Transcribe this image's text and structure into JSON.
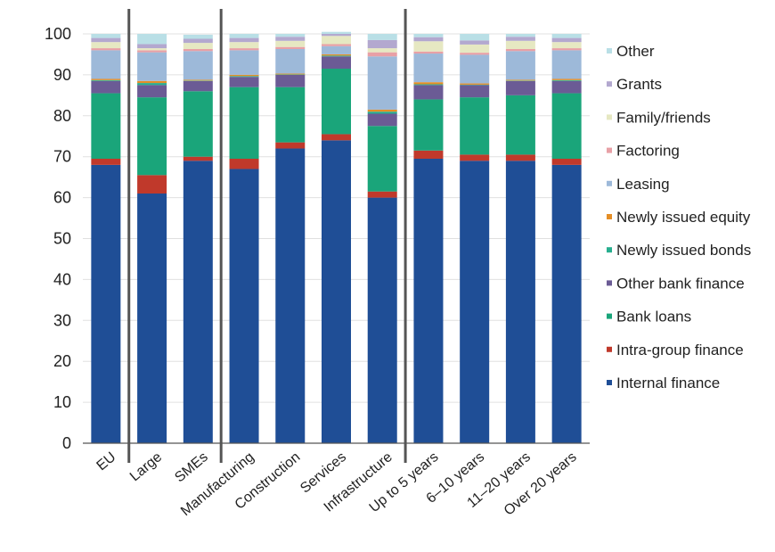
{
  "chart_data": {
    "type": "bar",
    "stacked": true,
    "ylim": [
      0,
      100
    ],
    "yticks": [
      0,
      10,
      20,
      30,
      40,
      50,
      60,
      70,
      80,
      90,
      100
    ],
    "grid": true,
    "legend_position": "right",
    "legend_order": [
      "Other",
      "Grants",
      "Family/friends",
      "Factoring",
      "Leasing",
      "Newly issued equity",
      "Newly issued bonds",
      "Other bank finance",
      "Bank loans",
      "Intra-group finance",
      "Internal finance"
    ],
    "categories": [
      "EU",
      "Large",
      "SMEs",
      "Manufacturing",
      "Construction",
      "Services",
      "Infrastructure",
      "Up to 5 years",
      "6–10 years",
      "11–20 years",
      "Over 20 years"
    ],
    "group_separators_after": [
      "EU",
      "SMEs",
      "Infrastructure"
    ],
    "series": [
      {
        "name": "Internal finance",
        "color": "#1f4e96",
        "values": [
          68,
          61,
          69,
          67,
          72,
          74,
          60,
          69.5,
          69,
          69,
          68
        ]
      },
      {
        "name": "Intra-group finance",
        "color": "#c0392b",
        "values": [
          1.5,
          4.5,
          1,
          2.5,
          1.5,
          1.5,
          1.5,
          2,
          1.5,
          1.5,
          1.5
        ]
      },
      {
        "name": "Bank loans",
        "color": "#1aa57a",
        "values": [
          16,
          19,
          16,
          17.5,
          13.5,
          16,
          16,
          12.5,
          14,
          14.5,
          16
        ]
      },
      {
        "name": "Other bank finance",
        "color": "#6b5b95",
        "values": [
          3,
          3,
          2.5,
          2.5,
          3,
          3,
          3,
          3.5,
          3,
          3.5,
          3
        ]
      },
      {
        "name": "Newly issued bonds",
        "color": "#27ae8f",
        "values": [
          0.2,
          0.5,
          0.1,
          0.2,
          0.1,
          0.2,
          0.5,
          0.2,
          0.1,
          0.1,
          0.2
        ]
      },
      {
        "name": "Newly issued equity",
        "color": "#e58e26",
        "values": [
          0.3,
          0.5,
          0.2,
          0.3,
          0.2,
          0.3,
          0.5,
          0.5,
          0.3,
          0.2,
          0.3
        ]
      },
      {
        "name": "Leasing",
        "color": "#9db9d9",
        "values": [
          7,
          7,
          7,
          6,
          6,
          2,
          13,
          7,
          7,
          7,
          7
        ]
      },
      {
        "name": "Factoring",
        "color": "#e8a0a6",
        "values": [
          0.5,
          0.5,
          0.5,
          0.5,
          0.5,
          0.5,
          1,
          0.5,
          0.5,
          0.5,
          0.5
        ]
      },
      {
        "name": "Family/friends",
        "color": "#e6e8c2",
        "values": [
          1.5,
          0.5,
          1.5,
          1.5,
          1.5,
          2,
          1,
          2.5,
          2,
          2,
          1.5
        ]
      },
      {
        "name": "Grants",
        "color": "#b3a8cf",
        "values": [
          1,
          1,
          1,
          1,
          1,
          0.5,
          2,
          1,
          1,
          1,
          1
        ]
      },
      {
        "name": "Other",
        "color": "#b9dfe6",
        "values": [
          1,
          2.5,
          1,
          1,
          0.7,
          0.5,
          1.5,
          0.8,
          1.6,
          0.7,
          1
        ]
      }
    ]
  }
}
